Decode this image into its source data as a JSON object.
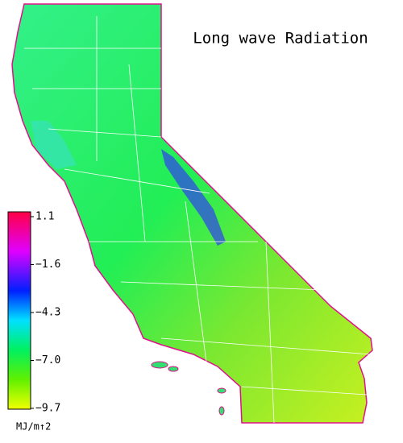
{
  "title": "Long wave Radiation",
  "colorbar": {
    "label": "MJ/m↑2",
    "lim": [
      -9.7,
      1.1
    ],
    "ticks": [
      1.1,
      {
        "value": -1.6,
        "label": "−1.6"
      },
      {
        "value": -4.3,
        "label": "−4.3"
      },
      {
        "value": -7.0,
        "label": "−7.0"
      },
      {
        "value": -9.7,
        "label": "−9.7"
      }
    ]
  }
}
